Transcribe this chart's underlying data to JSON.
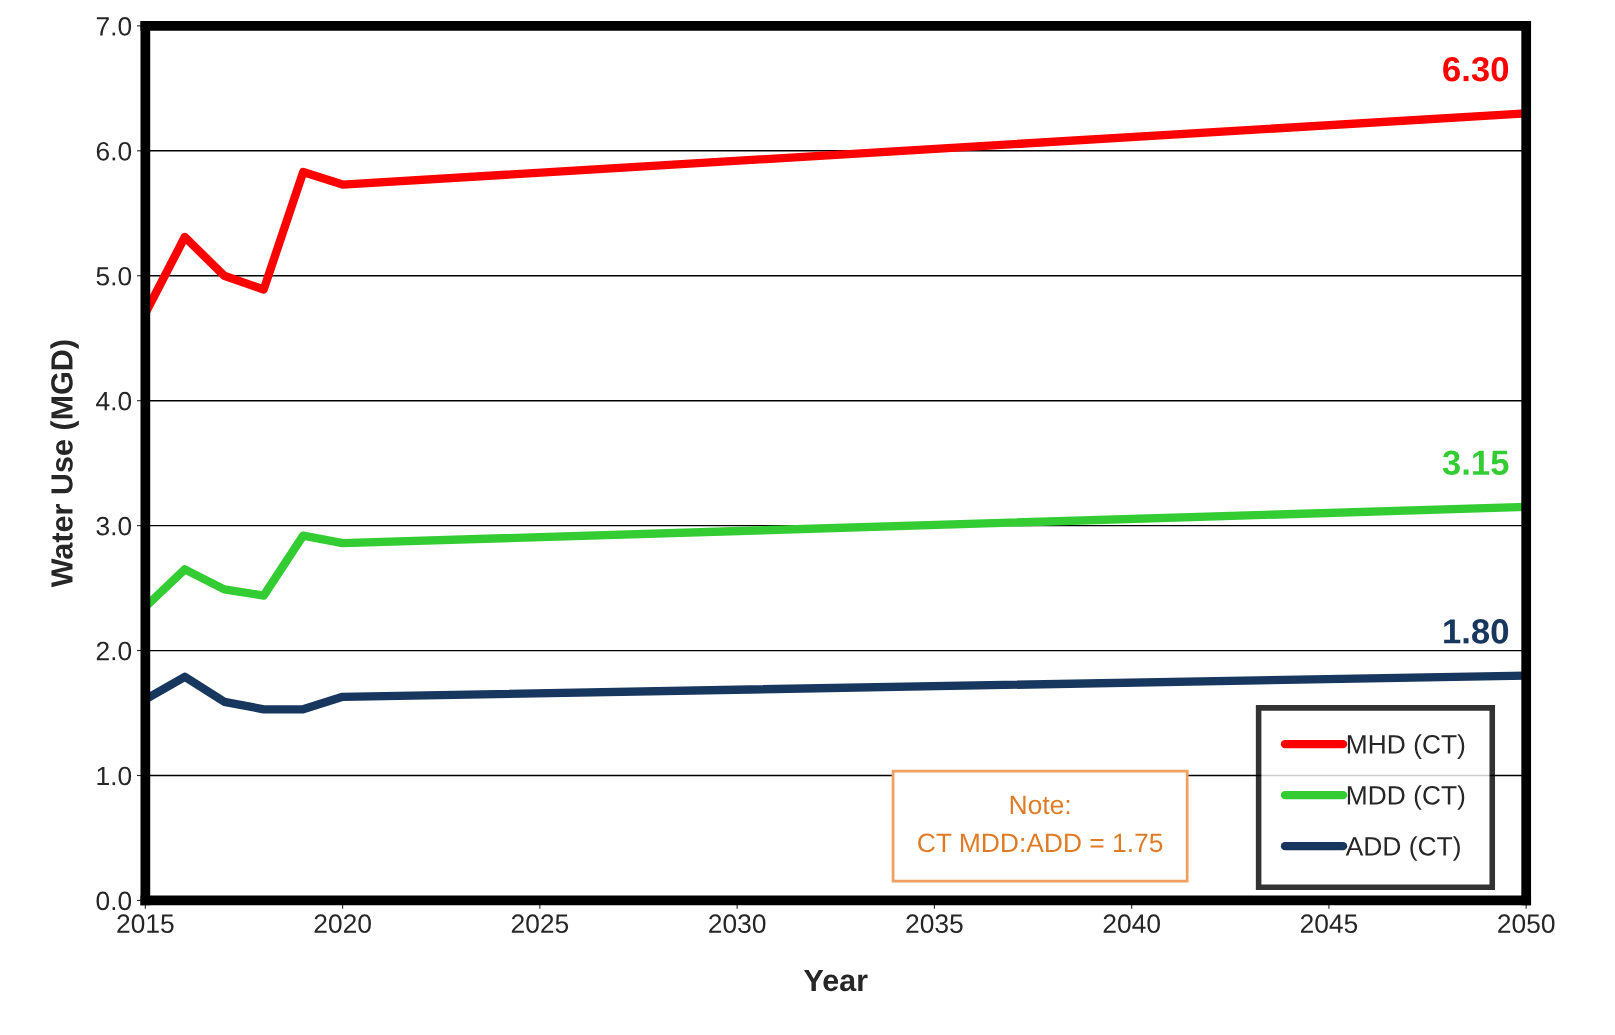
{
  "chart_data": {
    "type": "line",
    "xlabel": "Year",
    "ylabel": "Water Use (MGD)",
    "x": [
      2015,
      2016,
      2017,
      2018,
      2019,
      2020,
      2050
    ],
    "series": [
      {
        "name": "MHD (CT)",
        "color": "#ff0000",
        "values": [
          4.7,
          5.31,
          5.0,
          4.89,
          5.83,
          5.73,
          6.3
        ],
        "value_labels": [
          null,
          null,
          null,
          null,
          null,
          null,
          "6.30"
        ]
      },
      {
        "name": "MDD (CT)",
        "color": "#33cc33",
        "values": [
          2.35,
          2.65,
          2.49,
          2.44,
          2.92,
          2.86,
          3.15
        ],
        "value_labels": [
          null,
          null,
          null,
          null,
          null,
          null,
          "3.15"
        ]
      },
      {
        "name": "ADD (CT)",
        "color": "#17375e",
        "values": [
          1.61,
          1.79,
          1.59,
          1.53,
          1.53,
          1.63,
          1.8
        ],
        "value_labels": [
          null,
          null,
          null,
          null,
          null,
          null,
          "1.80"
        ]
      }
    ],
    "annotations": [
      "Note:\nCT MDD:ADD = 1.75"
    ],
    "xlim": [
      2015,
      2050
    ],
    "xticks": [
      2015,
      2020,
      2025,
      2030,
      2035,
      2040,
      2045,
      2050
    ],
    "ylim": [
      0,
      7
    ],
    "yticks": [
      {
        "value": 0,
        "label": "0.0"
      },
      {
        "value": 1,
        "label": "1.0"
      },
      {
        "value": 2,
        "label": "2.0"
      },
      {
        "value": 3,
        "label": "3.0"
      },
      {
        "value": 4,
        "label": "4.0"
      },
      {
        "value": 5,
        "label": "5.0"
      },
      {
        "value": 6,
        "label": "6.0"
      },
      {
        "value": 7,
        "label": "7.0"
      }
    ],
    "grid": "y",
    "legend": "bottom right",
    "marker": "none",
    "line_style": "solid"
  }
}
